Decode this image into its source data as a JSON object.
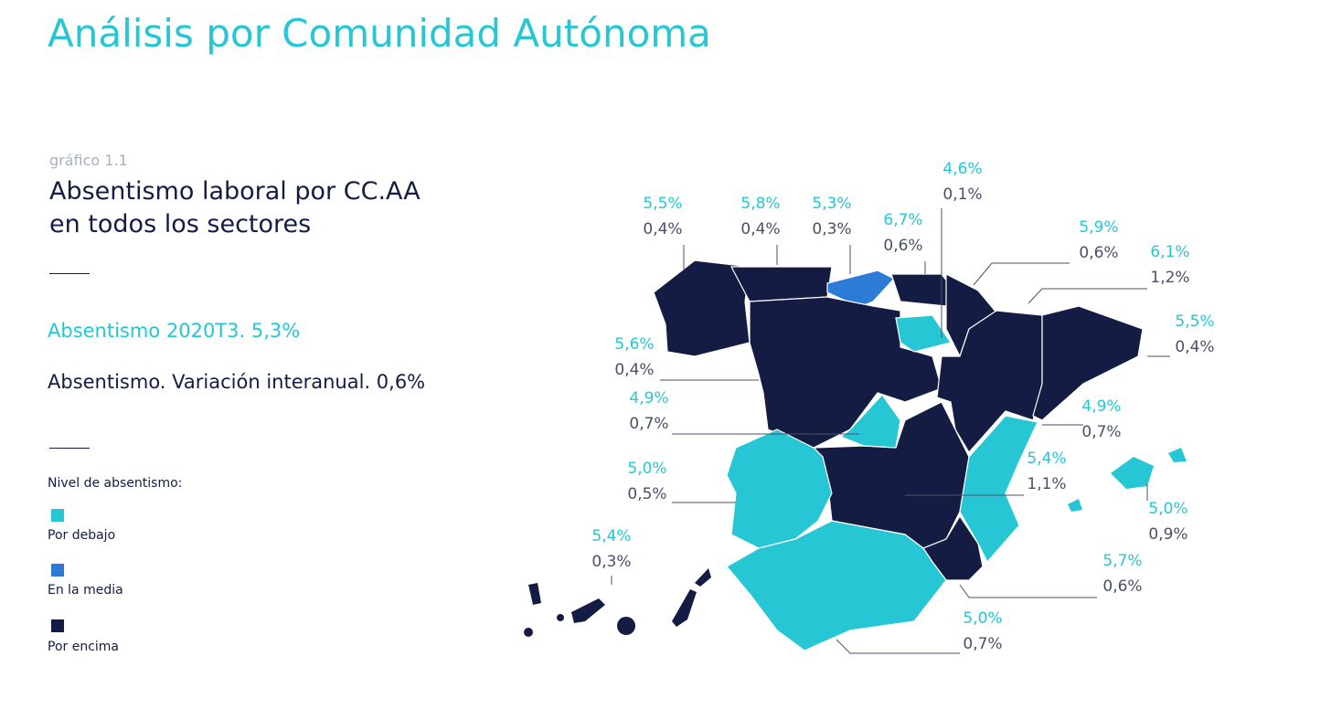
{
  "header": {
    "title": "Análisis por Comunidad Autónoma"
  },
  "figure": {
    "label": "gráfico 1.1",
    "title_lines": [
      "Absentismo laboral por CC.AA",
      "en todos los sectores"
    ],
    "summary": [
      "Absentismo 2020T3. 5,3%",
      "Absentismo. Variación interanual. 0,6%"
    ],
    "legend": {
      "title": "Nivel de absentismo:",
      "items": [
        "Por debajo",
        "En la media",
        "Por encima"
      ]
    }
  },
  "map": {
    "labels": [
      {
        "rate": "5,5%",
        "change": "0,4%"
      },
      {
        "rate": "5,8%",
        "change": "0,4%"
      },
      {
        "rate": "5,3%",
        "change": "0,3%"
      },
      {
        "rate": "6,7%",
        "change": "0,6%"
      },
      {
        "rate": "4,6%",
        "change": "0,1%"
      },
      {
        "rate": "5,9%",
        "change": "0,6%"
      },
      {
        "rate": "6,1%",
        "change": "1,2%"
      },
      {
        "rate": "5,5%",
        "change": "0,4%"
      },
      {
        "rate": "5,6%",
        "change": "0,4%"
      },
      {
        "rate": "4,9%",
        "change": "0,7%"
      },
      {
        "rate": "4,9%",
        "change": "0,7%"
      },
      {
        "rate": "5,4%",
        "change": "1,1%"
      },
      {
        "rate": "5,0%",
        "change": "0,9%"
      },
      {
        "rate": "5,0%",
        "change": "0,5%"
      },
      {
        "rate": "5,4%",
        "change": "0,3%"
      },
      {
        "rate": "5,7%",
        "change": "0,6%"
      },
      {
        "rate": "5,0%",
        "change": "0,7%"
      }
    ]
  }
}
